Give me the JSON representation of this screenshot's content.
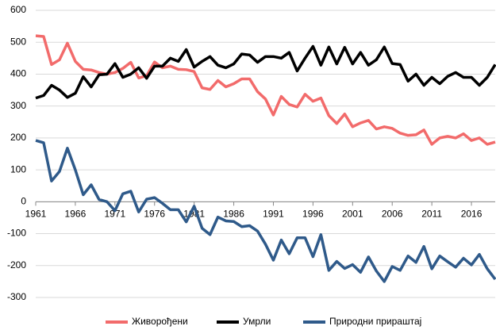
{
  "chart_data": {
    "type": "line",
    "x": [
      1961,
      1962,
      1963,
      1964,
      1965,
      1966,
      1967,
      1968,
      1969,
      1970,
      1971,
      1972,
      1973,
      1974,
      1975,
      1976,
      1977,
      1978,
      1979,
      1980,
      1981,
      1982,
      1983,
      1984,
      1985,
      1986,
      1987,
      1988,
      1989,
      1990,
      1991,
      1992,
      1993,
      1994,
      1995,
      1996,
      1997,
      1998,
      1999,
      2000,
      2001,
      2002,
      2003,
      2004,
      2005,
      2006,
      2007,
      2008,
      2009,
      2010,
      2011,
      2012,
      2013,
      2014,
      2015,
      2016,
      2017,
      2018,
      2019
    ],
    "series": [
      {
        "name": "Живорођени",
        "color": "#f26b6b",
        "values": [
          520,
          518,
          430,
          445,
          497,
          440,
          415,
          413,
          405,
          400,
          405,
          418,
          437,
          388,
          395,
          438,
          420,
          425,
          415,
          414,
          408,
          357,
          352,
          380,
          360,
          370,
          385,
          385,
          345,
          322,
          272,
          330,
          305,
          297,
          337,
          315,
          325,
          270,
          245,
          275,
          235,
          247,
          255,
          228,
          235,
          230,
          215,
          208,
          210,
          225,
          180,
          200,
          205,
          200,
          213,
          192,
          200,
          180,
          187
        ]
      },
      {
        "name": "Умрли",
        "color": "#000000",
        "values": [
          325,
          333,
          365,
          350,
          327,
          340,
          392,
          360,
          398,
          400,
          433,
          390,
          400,
          420,
          387,
          425,
          425,
          450,
          440,
          477,
          422,
          440,
          455,
          428,
          420,
          432,
          463,
          460,
          437,
          455,
          455,
          450,
          468,
          410,
          450,
          487,
          428,
          485,
          432,
          484,
          432,
          468,
          428,
          445,
          485,
          433,
          430,
          378,
          400,
          365,
          390,
          370,
          393,
          405,
          390,
          390,
          365,
          390,
          430
        ]
      },
      {
        "name": "Природни прираштај",
        "color": "#2f5a8a",
        "values": [
          192,
          185,
          65,
          95,
          168,
          100,
          22,
          53,
          7,
          0,
          -28,
          25,
          33,
          -32,
          8,
          13,
          -5,
          -25,
          -25,
          -63,
          -14,
          -83,
          -103,
          -48,
          -60,
          -62,
          -78,
          -75,
          -92,
          -133,
          -183,
          -120,
          -163,
          -113,
          -113,
          -172,
          -103,
          -215,
          -187,
          -209,
          -197,
          -221,
          -173,
          -217,
          -250,
          -203,
          -215,
          -170,
          -190,
          -140,
          -210,
          -170,
          -188,
          -205,
          -177,
          -198,
          -165,
          -210,
          -243
        ]
      }
    ],
    "xlim": [
      1961,
      2019
    ],
    "xticks": [
      1961,
      1966,
      1971,
      1976,
      1981,
      1986,
      1991,
      1996,
      2001,
      2006,
      2011,
      2016
    ],
    "ylim": [
      -300,
      600
    ],
    "yticks": [
      -300,
      -200,
      -100,
      0,
      100,
      200,
      300,
      400,
      500,
      600
    ],
    "grid": true,
    "legend": "bottom"
  }
}
